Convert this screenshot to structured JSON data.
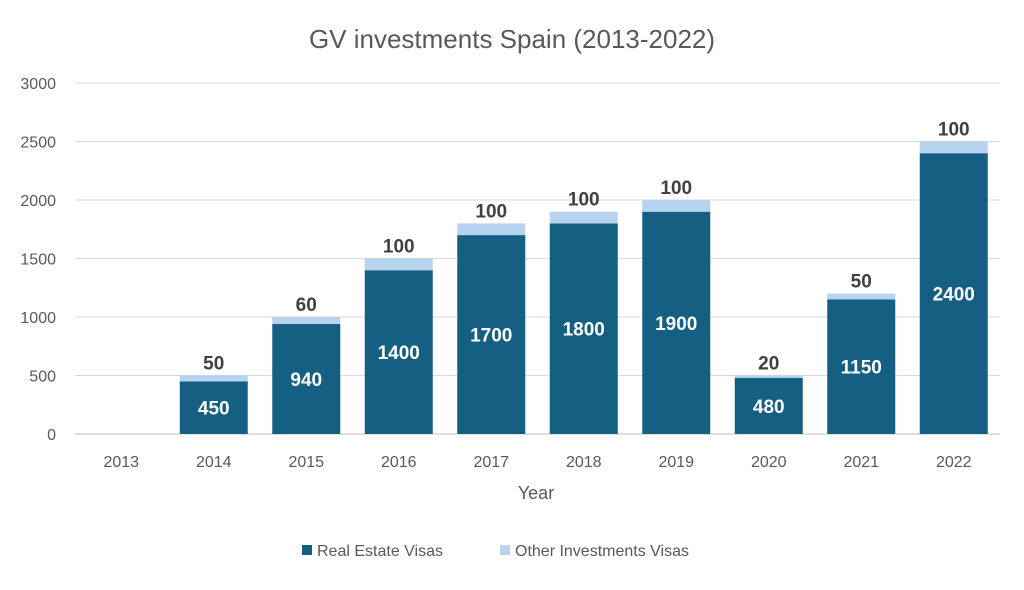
{
  "chart_data": {
    "type": "bar",
    "stacked": true,
    "title": "GV investments Spain (2013-2022)",
    "xlabel": "Year",
    "ylabel": "",
    "ylim": [
      0,
      3000
    ],
    "yticks": [
      0,
      500,
      1000,
      1500,
      2000,
      2500,
      3000
    ],
    "grid": true,
    "legend_position": "bottom",
    "categories": [
      "2013",
      "2014",
      "2015",
      "2016",
      "2017",
      "2018",
      "2019",
      "2020",
      "2021",
      "2022"
    ],
    "series": [
      {
        "name": "Real Estate Visas",
        "color": "#156082",
        "values": [
          null,
          450,
          940,
          1400,
          1700,
          1800,
          1900,
          480,
          1150,
          2400
        ]
      },
      {
        "name": "Other Investments Visas",
        "color": "#b6d4ef",
        "values": [
          null,
          50,
          60,
          100,
          100,
          100,
          100,
          20,
          50,
          100
        ]
      }
    ]
  }
}
